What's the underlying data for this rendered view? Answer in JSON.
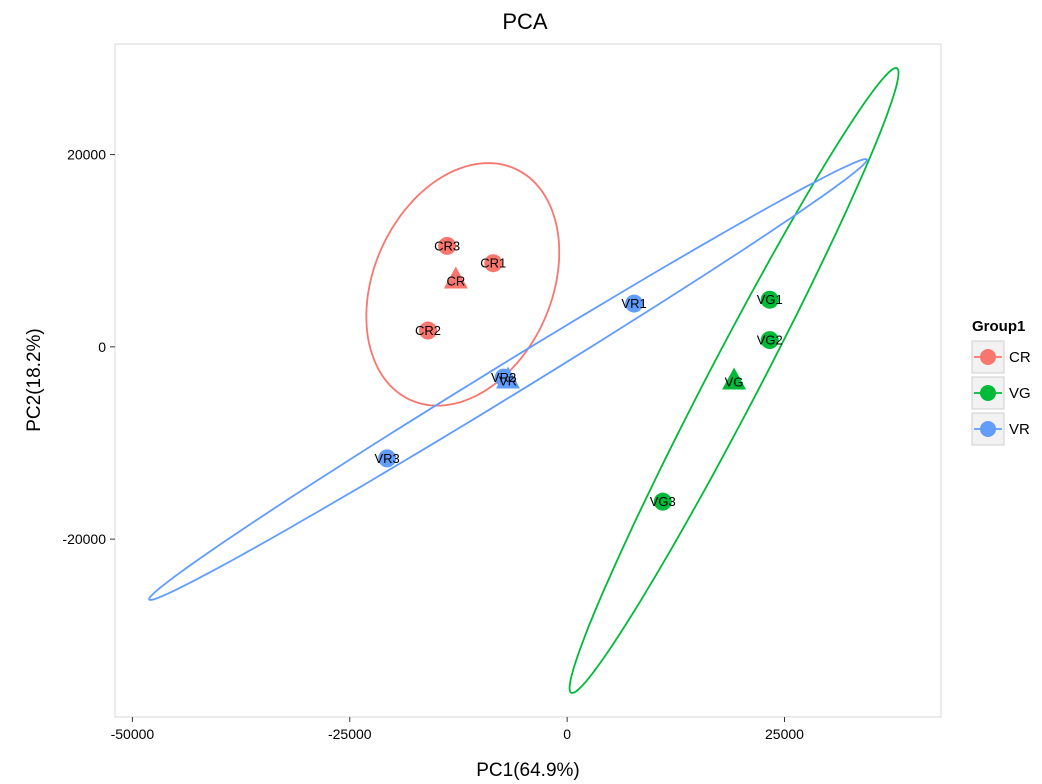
{
  "chart_data": {
    "type": "scatter",
    "title": "PCA",
    "xlabel": "PC1(64.9%)",
    "ylabel": "PC2(18.2%)",
    "xlim": [
      -52000,
      43000
    ],
    "ylim": [
      -38500,
      31500
    ],
    "x_ticks": [
      -50000,
      -25000,
      0,
      25000
    ],
    "y_ticks": [
      -20000,
      0,
      20000
    ],
    "x_tick_labels": [
      "-50000",
      "-25000",
      "0",
      "25000"
    ],
    "y_tick_labels": [
      "-20000",
      "0",
      "20000"
    ],
    "grid": false,
    "legend": {
      "title": "Group1",
      "position": "right"
    },
    "series": [
      {
        "name": "CR",
        "color": "#F8766D",
        "points": [
          {
            "label": "CR1",
            "x": -8500,
            "y": 8700
          },
          {
            "label": "CR2",
            "x": -16000,
            "y": 1700
          },
          {
            "label": "CR3",
            "x": -13800,
            "y": 10500
          }
        ],
        "centroid": {
          "label": "CR",
          "x": -12800,
          "y": 7000
        },
        "ellipse": {
          "cx": -12000,
          "cy": 6500,
          "rx": 13500,
          "ry": 10000,
          "angle_deg": 58
        }
      },
      {
        "name": "VG",
        "color": "#00BA38",
        "points": [
          {
            "label": "VG1",
            "x": 23300,
            "y": 4900
          },
          {
            "label": "VG2",
            "x": 23300,
            "y": 700
          },
          {
            "label": "VG3",
            "x": 11000,
            "y": -16100
          }
        ],
        "centroid": {
          "label": "VG",
          "x": 19200,
          "y": -3500
        },
        "ellipse": {
          "cx": 19200,
          "cy": -3500,
          "rx": 37500,
          "ry": 2900,
          "angle_deg": 60
        }
      },
      {
        "name": "VR",
        "color": "#619CFF",
        "points": [
          {
            "label": "VR1",
            "x": 7700,
            "y": 4500
          },
          {
            "label": "VR2",
            "x": -7300,
            "y": -3200
          },
          {
            "label": "VR3",
            "x": -20700,
            "y": -11600
          }
        ],
        "centroid": {
          "label": "VR",
          "x": -6800,
          "y": -3400
        },
        "ellipse": {
          "cx": -6800,
          "cy": -3400,
          "rx": 47200,
          "ry": 1700,
          "angle_deg": 29
        }
      }
    ]
  }
}
